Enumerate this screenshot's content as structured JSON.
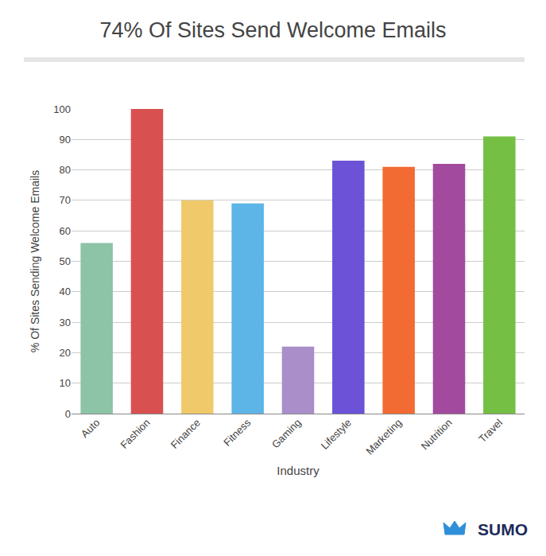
{
  "chart_data": {
    "type": "bar",
    "title": "74% Of Sites Send Welcome Emails",
    "x_label": "Industry",
    "y_label": "% Of Sites Sending Welcome Emails",
    "categories": [
      "Auto",
      "Fashion",
      "Finance",
      "Fitness",
      "Gaming",
      "Lifestyle",
      "Marketing",
      "Nutrition",
      "Travel"
    ],
    "values": [
      56,
      100,
      70,
      69,
      22,
      83,
      81,
      82,
      91
    ],
    "colors": [
      "#8dc3a7",
      "#d95050",
      "#f0c96a",
      "#5db4e6",
      "#a98ec9",
      "#6b52d6",
      "#f26b32",
      "#a24a9e",
      "#76bf45"
    ],
    "ylim": [
      0,
      100
    ],
    "yticks": [
      0,
      10,
      20,
      30,
      40,
      50,
      60,
      70,
      80,
      90,
      100
    ],
    "grid": true,
    "annotations": [
      {
        "text": "SUMO"
      }
    ]
  }
}
